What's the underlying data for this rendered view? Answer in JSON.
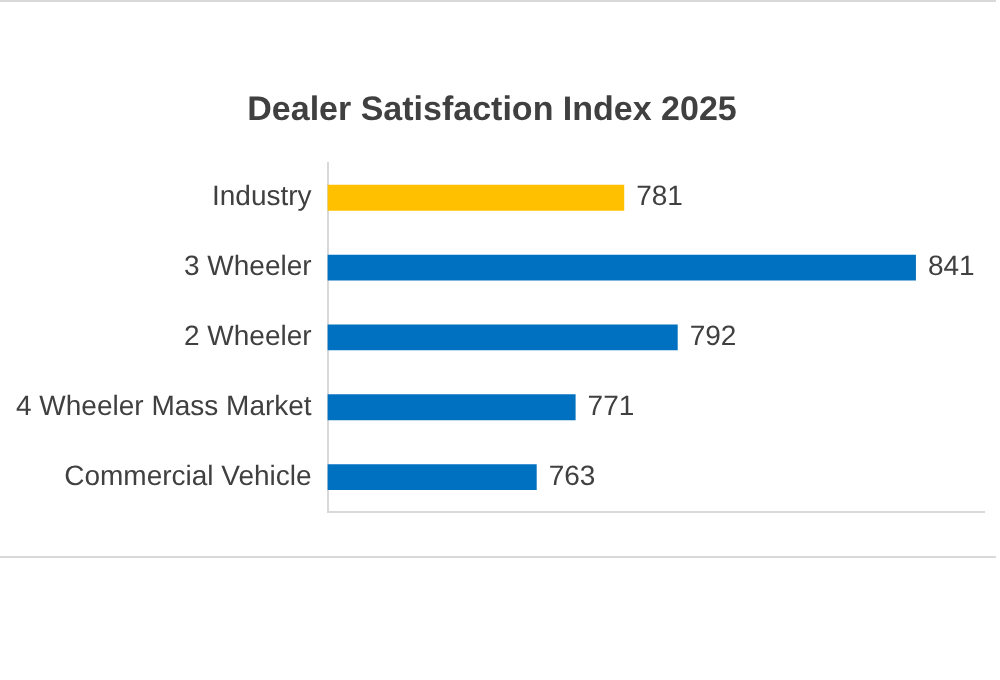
{
  "chart_data": {
    "type": "bar",
    "orientation": "horizontal",
    "title": "Dealer Satisfaction Index 2025",
    "categories": [
      "Industry",
      "3 Wheeler",
      "2 Wheeler",
      "4 Wheeler Mass Market",
      "Commercial Vehicle"
    ],
    "values": [
      781,
      841,
      792,
      771,
      763
    ],
    "colors": [
      "#ffc000",
      "#0070c0",
      "#0070c0",
      "#0070c0",
      "#0070c0"
    ],
    "xlim": [
      720,
      855
    ],
    "tick_labels": "y",
    "data_labels": true,
    "legend": false
  }
}
